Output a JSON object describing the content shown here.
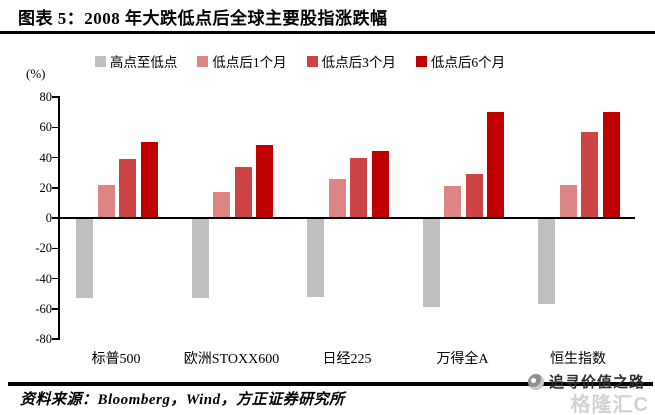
{
  "header": {
    "title": "图表 5：2008 年大跌低点后全球主要股指涨跌幅"
  },
  "chart_data": {
    "type": "bar",
    "title": "2008 年大跌低点后全球主要股指涨跌幅",
    "unit_label": "(%)",
    "xlabel": "",
    "ylabel": "(%)",
    "ylim": [
      -80,
      80
    ],
    "yticks": [
      80,
      60,
      40,
      20,
      0,
      -20,
      -40,
      -60,
      -80
    ],
    "grid": false,
    "legend_position": "top",
    "categories": [
      "标普500",
      "欧洲STOXX600",
      "日经225",
      "万得全A",
      "恒生指数"
    ],
    "series": [
      {
        "name": "高点至低点",
        "color": "#bfbfbf",
        "values": [
          -53,
          -53,
          -52,
          -59,
          -57
        ]
      },
      {
        "name": "低点后1个月",
        "color": "#dd8484",
        "values": [
          22,
          17,
          26,
          21,
          22
        ]
      },
      {
        "name": "低点后3个月",
        "color": "#cc4444",
        "values": [
          39,
          34,
          40,
          29,
          57
        ]
      },
      {
        "name": "低点后6个月",
        "color": "#c00000",
        "values": [
          50,
          48,
          44,
          70,
          70
        ]
      }
    ]
  },
  "footer": {
    "source": "资料来源：Bloomberg，Wind，方正证券研究所"
  },
  "watermark": {
    "slogan": "追寻价值之路",
    "logo": "格隆汇C"
  },
  "colors": {
    "axis": "#000000",
    "background": "#ffffff"
  }
}
